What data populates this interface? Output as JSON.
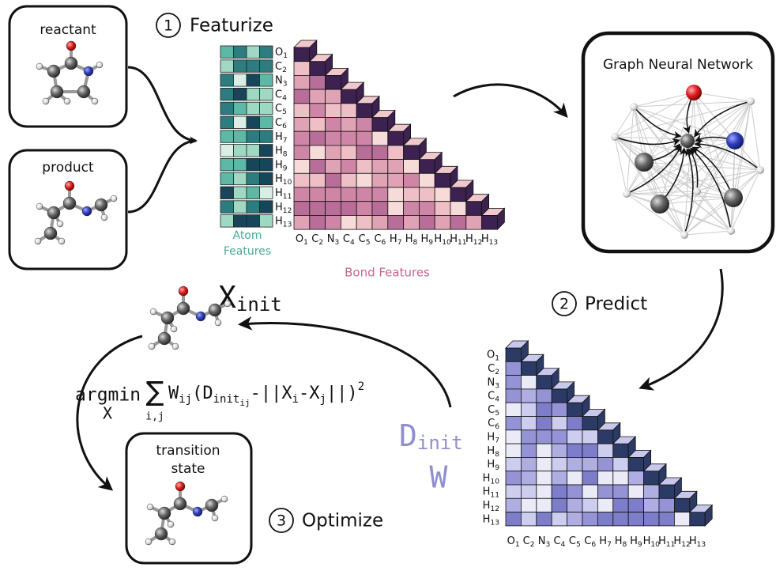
{
  "reactant": "reactant",
  "product": "product",
  "featurize": {
    "step": "1",
    "label": "Featurize"
  },
  "atoms": [
    {
      "element": "O",
      "index": "1"
    },
    {
      "element": "C",
      "index": "2"
    },
    {
      "element": "N",
      "index": "3"
    },
    {
      "element": "C",
      "index": "4"
    },
    {
      "element": "C",
      "index": "5"
    },
    {
      "element": "C",
      "index": "6"
    },
    {
      "element": "H",
      "index": "7"
    },
    {
      "element": "H",
      "index": "8"
    },
    {
      "element": "H",
      "index": "9"
    },
    {
      "element": "H",
      "index": "10"
    },
    {
      "element": "H",
      "index": "11"
    },
    {
      "element": "H",
      "index": "12"
    },
    {
      "element": "H",
      "index": "13"
    }
  ],
  "atom_features_label": [
    "Atom",
    "Features"
  ],
  "bond_features_label": "Bond Features",
  "gnn_title": "Graph Neural Network",
  "predict": {
    "step": "2",
    "label": "Predict"
  },
  "x_init": {
    "base": "X",
    "sub": "init"
  },
  "formula": {
    "operator": "argmin",
    "operator_sub": "X",
    "sum": "∑",
    "sum_sub": "i,j",
    "terms": [
      {
        "text": "W"
      },
      {
        "sub": "ij"
      },
      {
        "text": "(D"
      },
      {
        "sub": "init"
      },
      {
        "subsub": "ij"
      },
      {
        "text": "-||X"
      },
      {
        "sub": "i"
      },
      {
        "text": "-X"
      },
      {
        "sub": "j"
      },
      {
        "text": "||)"
      },
      {
        "sup": "2"
      }
    ]
  },
  "d_init": {
    "base": "D",
    "sub": "init"
  },
  "w": "W",
  "transition_state": [
    "transition",
    "state"
  ],
  "optimize": {
    "step": "3",
    "label": "Optimize"
  }
}
